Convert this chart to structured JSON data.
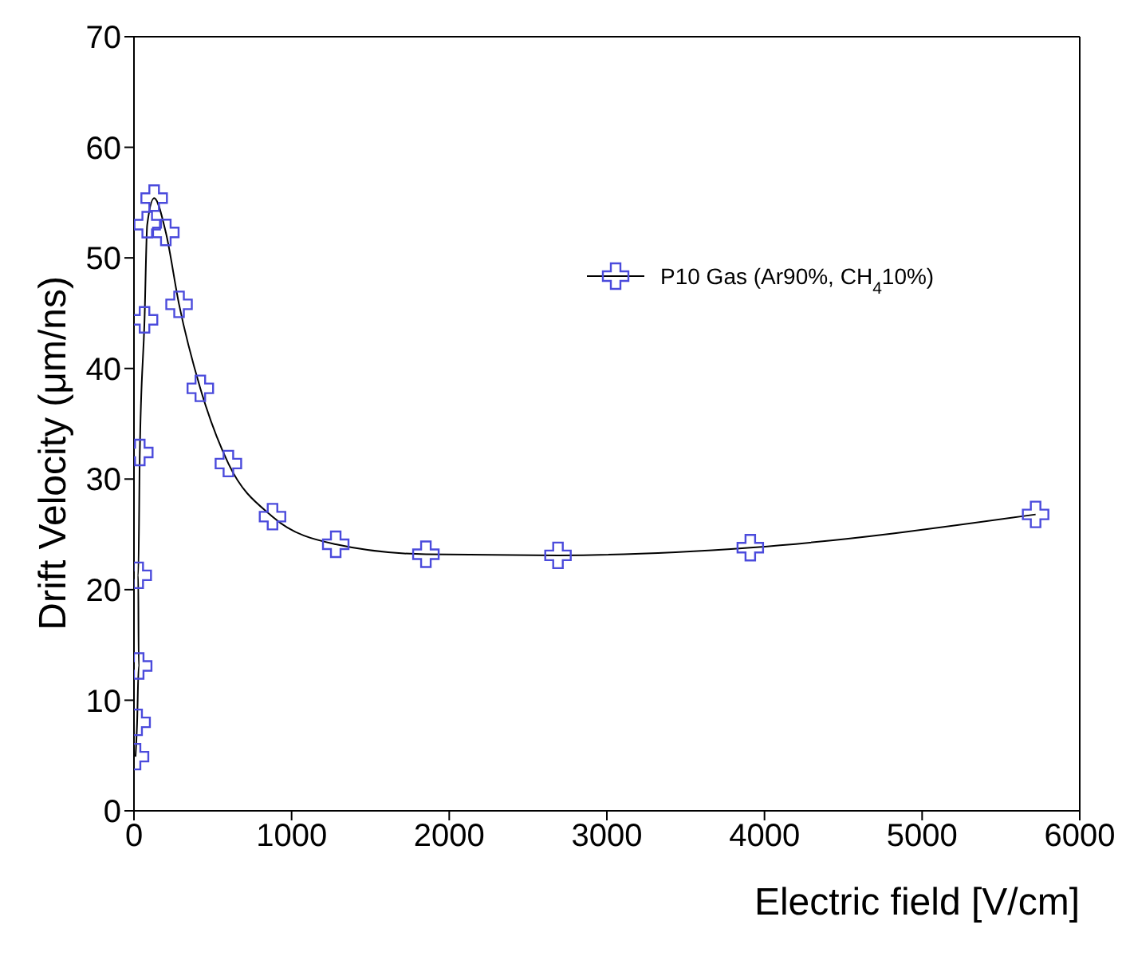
{
  "chart_data": {
    "type": "line",
    "xlabel": "Electric field [V/cm]",
    "ylabel": "Drift Velocity (μm/ns)",
    "x": [
      10,
      20,
      30,
      27,
      37,
      67,
      84,
      128,
      202,
      286,
      421,
      599,
      879,
      1280,
      1852,
      2690,
      3910,
      5720
    ],
    "series": [
      {
        "name": "P10 Gas (Ar90%, CH$_{4}$10%)",
        "color": "#4b4bdc",
        "values": [
          4.9,
          8.0,
          13.1,
          21.3,
          32.4,
          44.4,
          53.0,
          55.4,
          52.3,
          45.8,
          38.2,
          31.4,
          26.6,
          24.1,
          23.2,
          23.1,
          23.8,
          26.8
        ]
      }
    ],
    "xlim": [
      0,
      6000
    ],
    "xticks": [
      0,
      1000,
      2000,
      3000,
      4000,
      5000,
      6000
    ],
    "ylim": [
      0,
      70
    ],
    "yticks": [
      0,
      10,
      20,
      30,
      40,
      50,
      60,
      70
    ],
    "grid": false,
    "legend": "top right",
    "marker": "cross",
    "line_style": "solid"
  }
}
